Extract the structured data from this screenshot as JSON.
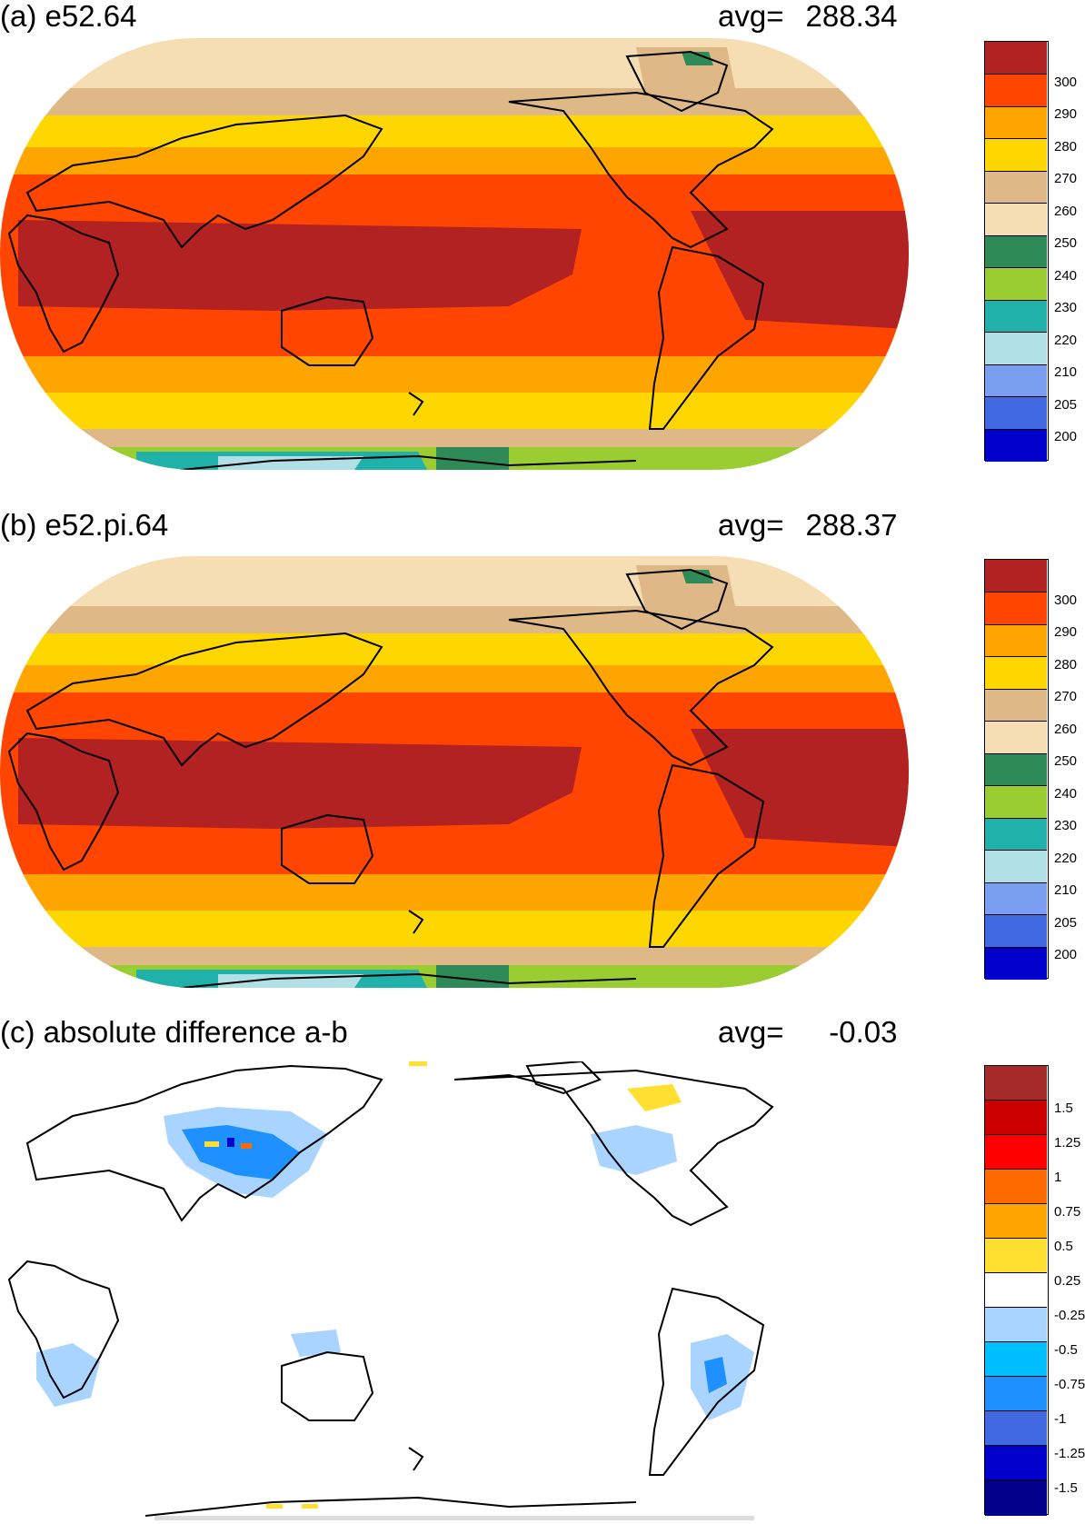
{
  "panels": [
    {
      "id": "a",
      "title": "(a) e52.64",
      "avg_label": "avg=",
      "avg_value": "288.34",
      "colorbar": {
        "labels": [
          "300",
          "290",
          "280",
          "270",
          "260",
          "250",
          "240",
          "230",
          "220",
          "210",
          "205",
          "200"
        ],
        "colors": [
          "#b22222",
          "#ff4500",
          "#ffa500",
          "#ffd700",
          "#deb887",
          "#f5deb3",
          "#2e8b57",
          "#9acd32",
          "#20b2aa",
          "#b0e0e6",
          "#7b9ff0",
          "#4169e1",
          "#0000cd"
        ]
      }
    },
    {
      "id": "b",
      "title": "(b) e52.pi.64",
      "avg_label": "avg=",
      "avg_value": "288.37",
      "colorbar": {
        "labels": [
          "300",
          "290",
          "280",
          "270",
          "260",
          "250",
          "240",
          "230",
          "220",
          "210",
          "205",
          "200"
        ],
        "colors": [
          "#b22222",
          "#ff4500",
          "#ffa500",
          "#ffd700",
          "#deb887",
          "#f5deb3",
          "#2e8b57",
          "#9acd32",
          "#20b2aa",
          "#b0e0e6",
          "#7b9ff0",
          "#4169e1",
          "#0000cd"
        ]
      }
    },
    {
      "id": "c",
      "title": "(c) absolute difference a-b",
      "avg_label": "avg=",
      "avg_value": "-0.03",
      "colorbar": {
        "labels": [
          "1.5",
          "1.25",
          "1",
          "0.75",
          "0.5",
          "0.25",
          "-0.25",
          "-0.5",
          "-0.75",
          "-1",
          "-1.25",
          "-1.5"
        ],
        "colors": [
          "#a52a2a",
          "#cd0000",
          "#ff0000",
          "#ff6a00",
          "#ffa500",
          "#ffe030",
          "#ffffff",
          "#a8d4ff",
          "#00bfff",
          "#1e90ff",
          "#4169e1",
          "#0000cd",
          "#00008b"
        ]
      }
    }
  ]
}
